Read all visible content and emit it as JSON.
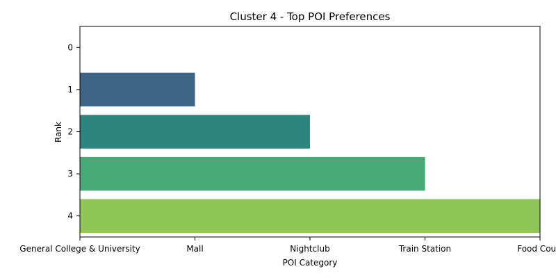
{
  "chart_data": {
    "type": "bar",
    "orientation": "horizontal",
    "title": "Cluster 4 - Top POI Preferences",
    "xlabel": "POI Category",
    "ylabel": "Rank",
    "x_categories": [
      "General College & University",
      "Mall",
      "Nightclub",
      "Train Station",
      "Food Court"
    ],
    "y_categories": [
      "0",
      "1",
      "2",
      "3",
      "4"
    ],
    "values": [
      0,
      1,
      2,
      3,
      4
    ],
    "colors": [
      "#440154",
      "#3e6584",
      "#2d8580",
      "#47aa77",
      "#8fc657"
    ],
    "grid": false,
    "legend": "none"
  }
}
